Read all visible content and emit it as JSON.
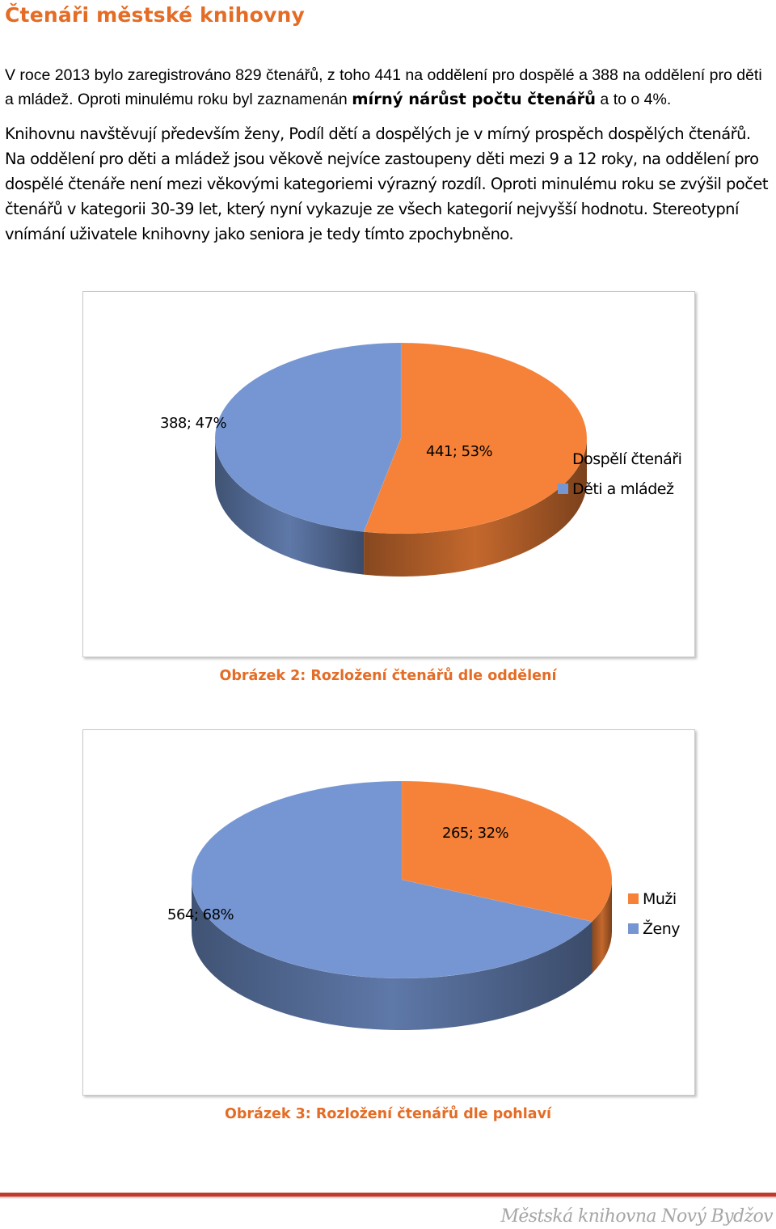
{
  "document": {
    "heading": "Čtenáři městské knihovny",
    "para1": {
      "p1": "V roce 2013 bylo zaregistrováno 829 čtenářů, z toho 441 na oddělení pro dospělé a 388 na oddělení pro děti a mládež. Oproti minulému roku byl zaznamenán ",
      "bold": "mírný nárůst počtu čtenářů",
      "p2": " a to o 4%."
    },
    "para2": "Knihovnu navštěvují především ženy, Podíl dětí a dospělých je v mírný prospěch dospělých čtenářů. Na oddělení pro děti a mládež jsou věkově nejvíce zastoupeny děti mezi 9 a 12 roky, na oddělení pro dospělé čtenáře není mezi věkovými kategoriemi výrazný rozdíl. Oproti minulému roku se zvýšil počet čtenářů v kategorii 30-39 let, který nyní vykazuje ze všech kategorií nejvyšší hodnotu. Stereotypní vnímání uživatele knihovny jako seniora je tedy tímto zpochybněno.",
    "footer": "Městská knihovna Nový Bydžov"
  },
  "colors": {
    "orange": "#f58238",
    "blue": "#7596d2",
    "accent": "#e46c25"
  },
  "chart_data": [
    {
      "type": "pie",
      "title": "",
      "caption": "Obrázek 2: Rozložení čtenářů dle oddělení",
      "categories": [
        "Dospělí čtenáři",
        "Děti a mládež"
      ],
      "values": [
        441,
        388
      ],
      "labels": [
        "441; 53%",
        "388; 47%"
      ],
      "legend_position": "right"
    },
    {
      "type": "pie",
      "title": "",
      "caption": "Obrázek 3: Rozložení čtenářů dle pohlaví",
      "categories": [
        "Muži",
        "Ženy"
      ],
      "values": [
        265,
        564
      ],
      "labels": [
        "265; 32%",
        "564; 68%"
      ],
      "legend_position": "right"
    }
  ]
}
